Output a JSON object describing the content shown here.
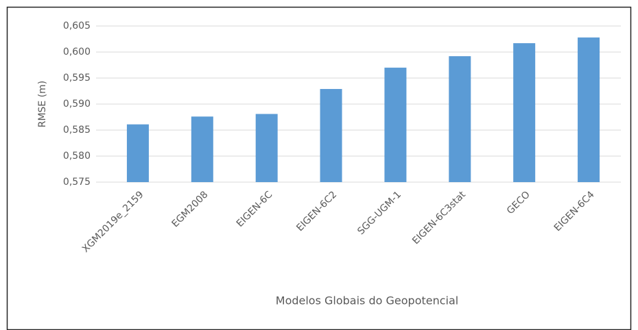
{
  "chart_data": {
    "type": "bar",
    "xlabel": "Modelos Globais do Geopotencial",
    "ylabel": "RMSE (m)",
    "categories": [
      "XGM2019e_2159",
      "EGM2008",
      "EIGEN-6C",
      "EIGEN-6C2",
      "SGG-UGM-1",
      "EIGEN-6C3stat",
      "GECO",
      "EIGEN-6C4"
    ],
    "values": [
      0.5861,
      0.5876,
      0.5881,
      0.5929,
      0.597,
      0.5992,
      0.6017,
      0.6028
    ],
    "color": "#5b9bd5",
    "ylim": [
      0.575,
      0.605
    ],
    "yticks": [
      {
        "value": 0.575,
        "label": "0,575"
      },
      {
        "value": 0.58,
        "label": "0,580"
      },
      {
        "value": 0.585,
        "label": "0,585"
      },
      {
        "value": 0.59,
        "label": "0,590"
      },
      {
        "value": 0.595,
        "label": "0,595"
      },
      {
        "value": 0.6,
        "label": "0,600"
      },
      {
        "value": 0.605,
        "label": "0,605"
      }
    ],
    "grid": true
  }
}
